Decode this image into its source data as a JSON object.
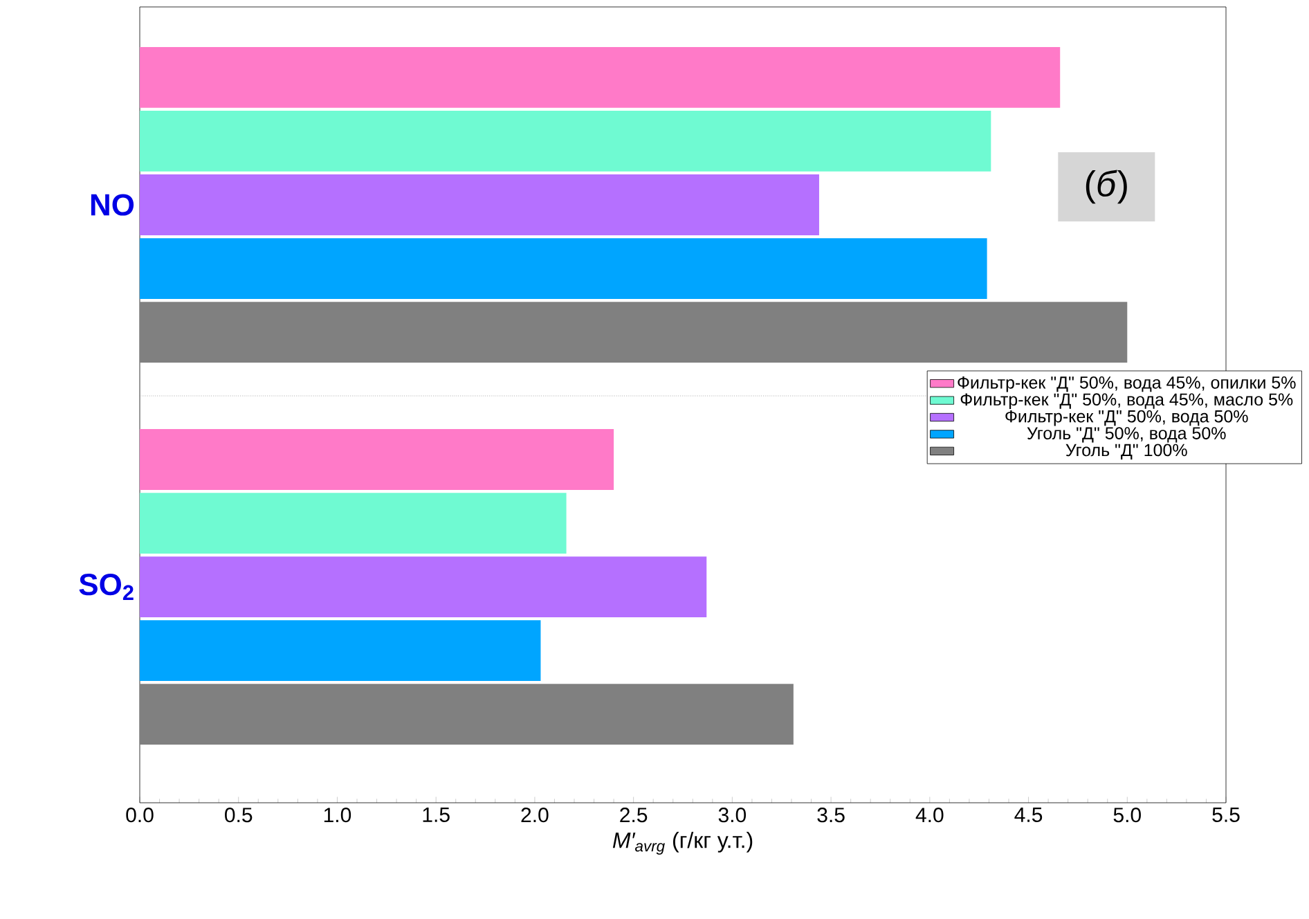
{
  "chart_data": {
    "type": "bar",
    "orientation": "horizontal",
    "categories": [
      "NO",
      "SO$_{2}$"
    ],
    "xlabel": "*M′$_{avrg}$*  (г/кг у.т.)",
    "xlim": [
      0,
      5.5
    ],
    "xticks": [
      {
        "value": 0,
        "label": "0.0"
      },
      {
        "value": 0.5,
        "label": "0.5"
      },
      {
        "value": 1,
        "label": "1.0"
      },
      {
        "value": 1.5,
        "label": "1.5"
      },
      {
        "value": 2,
        "label": "2.0"
      },
      {
        "value": 2.5,
        "label": "2.5"
      },
      {
        "value": 3,
        "label": "3.0"
      },
      {
        "value": 3.5,
        "label": "3.5"
      },
      {
        "value": 4,
        "label": "4.0"
      },
      {
        "value": 4.5,
        "label": "4.5"
      },
      {
        "value": 5,
        "label": "5.0"
      },
      {
        "value": 5.5,
        "label": "5.5"
      }
    ],
    "series": [
      {
        "name": "Фильтр-кек \"Д\" 50%, вода 45%, опилки 5%",
        "color": "#ff7ac8",
        "values": [
          4.66,
          2.4
        ]
      },
      {
        "name": "Фильтр-кек \"Д\" 50%, вода 45%, масло 5%",
        "color": "#6ffad2",
        "values": [
          4.31,
          2.16
        ]
      },
      {
        "name": "Фильтр-кек \"Д\" 50%, вода 50%",
        "color": "#b570ff",
        "values": [
          3.44,
          2.87
        ]
      },
      {
        "name": "Уголь \"Д\" 50%, вода 50%",
        "color": "#00a5ff",
        "values": [
          4.29,
          2.03
        ]
      },
      {
        "name": "Уголь \"Д\" 100%",
        "color": "#808080",
        "values": [
          5.0,
          3.31
        ]
      }
    ],
    "legend": "right",
    "annotations": [
      "(*б*)"
    ]
  }
}
